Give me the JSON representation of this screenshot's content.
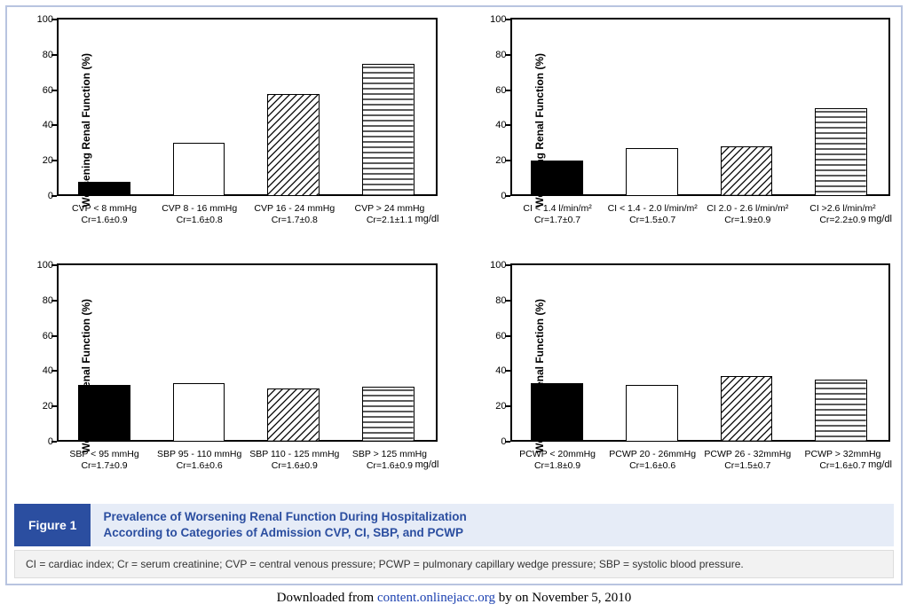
{
  "figure": {
    "tag": "Figure 1",
    "title_line1": "Prevalence of Worsening Renal Function During Hospitalization",
    "title_line2": "According to Categories of Admission CVP, CI, SBP, and PCWP",
    "abbrev": "CI = cardiac index; Cr = serum creatinine; CVP = central venous pressure; PCWP = pulmonary capillary wedge pressure; SBP = systolic blood pressure."
  },
  "download": {
    "prefix": "Downloaded from ",
    "link": "content.onlinejacc.org",
    "suffix": " by on November 5, 2010"
  },
  "axis": {
    "ylabel": "Worsening Renal Function (%)",
    "ylim": [
      0,
      100
    ],
    "ytick_step": 20,
    "unit": "mg/dl",
    "label_fontsize": 12,
    "bar_width_frac": 0.55,
    "border_color": "#000000",
    "background": "#ffffff"
  },
  "fills": {
    "solid": "#000000",
    "empty": "#ffffff",
    "diag_stroke": "#000000",
    "horiz_stroke": "#000000"
  },
  "panels": [
    {
      "id": "cvp",
      "bars": [
        {
          "value": 8,
          "fill": "solid",
          "label1": "CVP < 8 mmHg",
          "label2": "Cr=1.6±0.9"
        },
        {
          "value": 30,
          "fill": "empty",
          "label1": "CVP 8 - 16 mmHg",
          "label2": "Cr=1.6±0.8"
        },
        {
          "value": 58,
          "fill": "diag",
          "label1": "CVP 16 - 24 mmHg",
          "label2": "Cr=1.7±0.8"
        },
        {
          "value": 75,
          "fill": "horiz",
          "label1": "CVP > 24 mmHg",
          "label2": "Cr=2.1±1.1"
        }
      ]
    },
    {
      "id": "ci",
      "bars": [
        {
          "value": 20,
          "fill": "solid",
          "label1": "CI < 1.4 l/min/m²",
          "label2": "Cr=1.7±0.7"
        },
        {
          "value": 27,
          "fill": "empty",
          "label1": "CI < 1.4 - 2.0 l/min/m²",
          "label2": "Cr=1.5±0.7"
        },
        {
          "value": 28,
          "fill": "diag",
          "label1": "CI 2.0 - 2.6 l/min/m²",
          "label2": "Cr=1.9±0.9"
        },
        {
          "value": 50,
          "fill": "horiz",
          "label1": "CI >2.6 l/min/m²",
          "label2": "Cr=2.2±0.9"
        }
      ]
    },
    {
      "id": "sbp",
      "bars": [
        {
          "value": 32,
          "fill": "solid",
          "label1": "SBP < 95 mmHg",
          "label2": "Cr=1.7±0.9"
        },
        {
          "value": 33,
          "fill": "empty",
          "label1": "SBP 95 - 110 mmHg",
          "label2": "Cr=1.6±0.6"
        },
        {
          "value": 30,
          "fill": "diag",
          "label1": "SBP 110 - 125 mmHg",
          "label2": "Cr=1.6±0.9"
        },
        {
          "value": 31,
          "fill": "horiz",
          "label1": "SBP > 125 mmHg",
          "label2": "Cr=1.6±0.9"
        }
      ]
    },
    {
      "id": "pcwp",
      "bars": [
        {
          "value": 33,
          "fill": "solid",
          "label1": "PCWP < 20mmHg",
          "label2": "Cr=1.8±0.9"
        },
        {
          "value": 32,
          "fill": "empty",
          "label1": "PCWP 20 - 26mmHg",
          "label2": "Cr=1.6±0.6"
        },
        {
          "value": 37,
          "fill": "diag",
          "label1": "PCWP 26 - 32mmHg",
          "label2": "Cr=1.5±0.7"
        },
        {
          "value": 35,
          "fill": "horiz",
          "label1": "PCWP > 32mmHg",
          "label2": "Cr=1.6±0.7"
        }
      ]
    }
  ]
}
